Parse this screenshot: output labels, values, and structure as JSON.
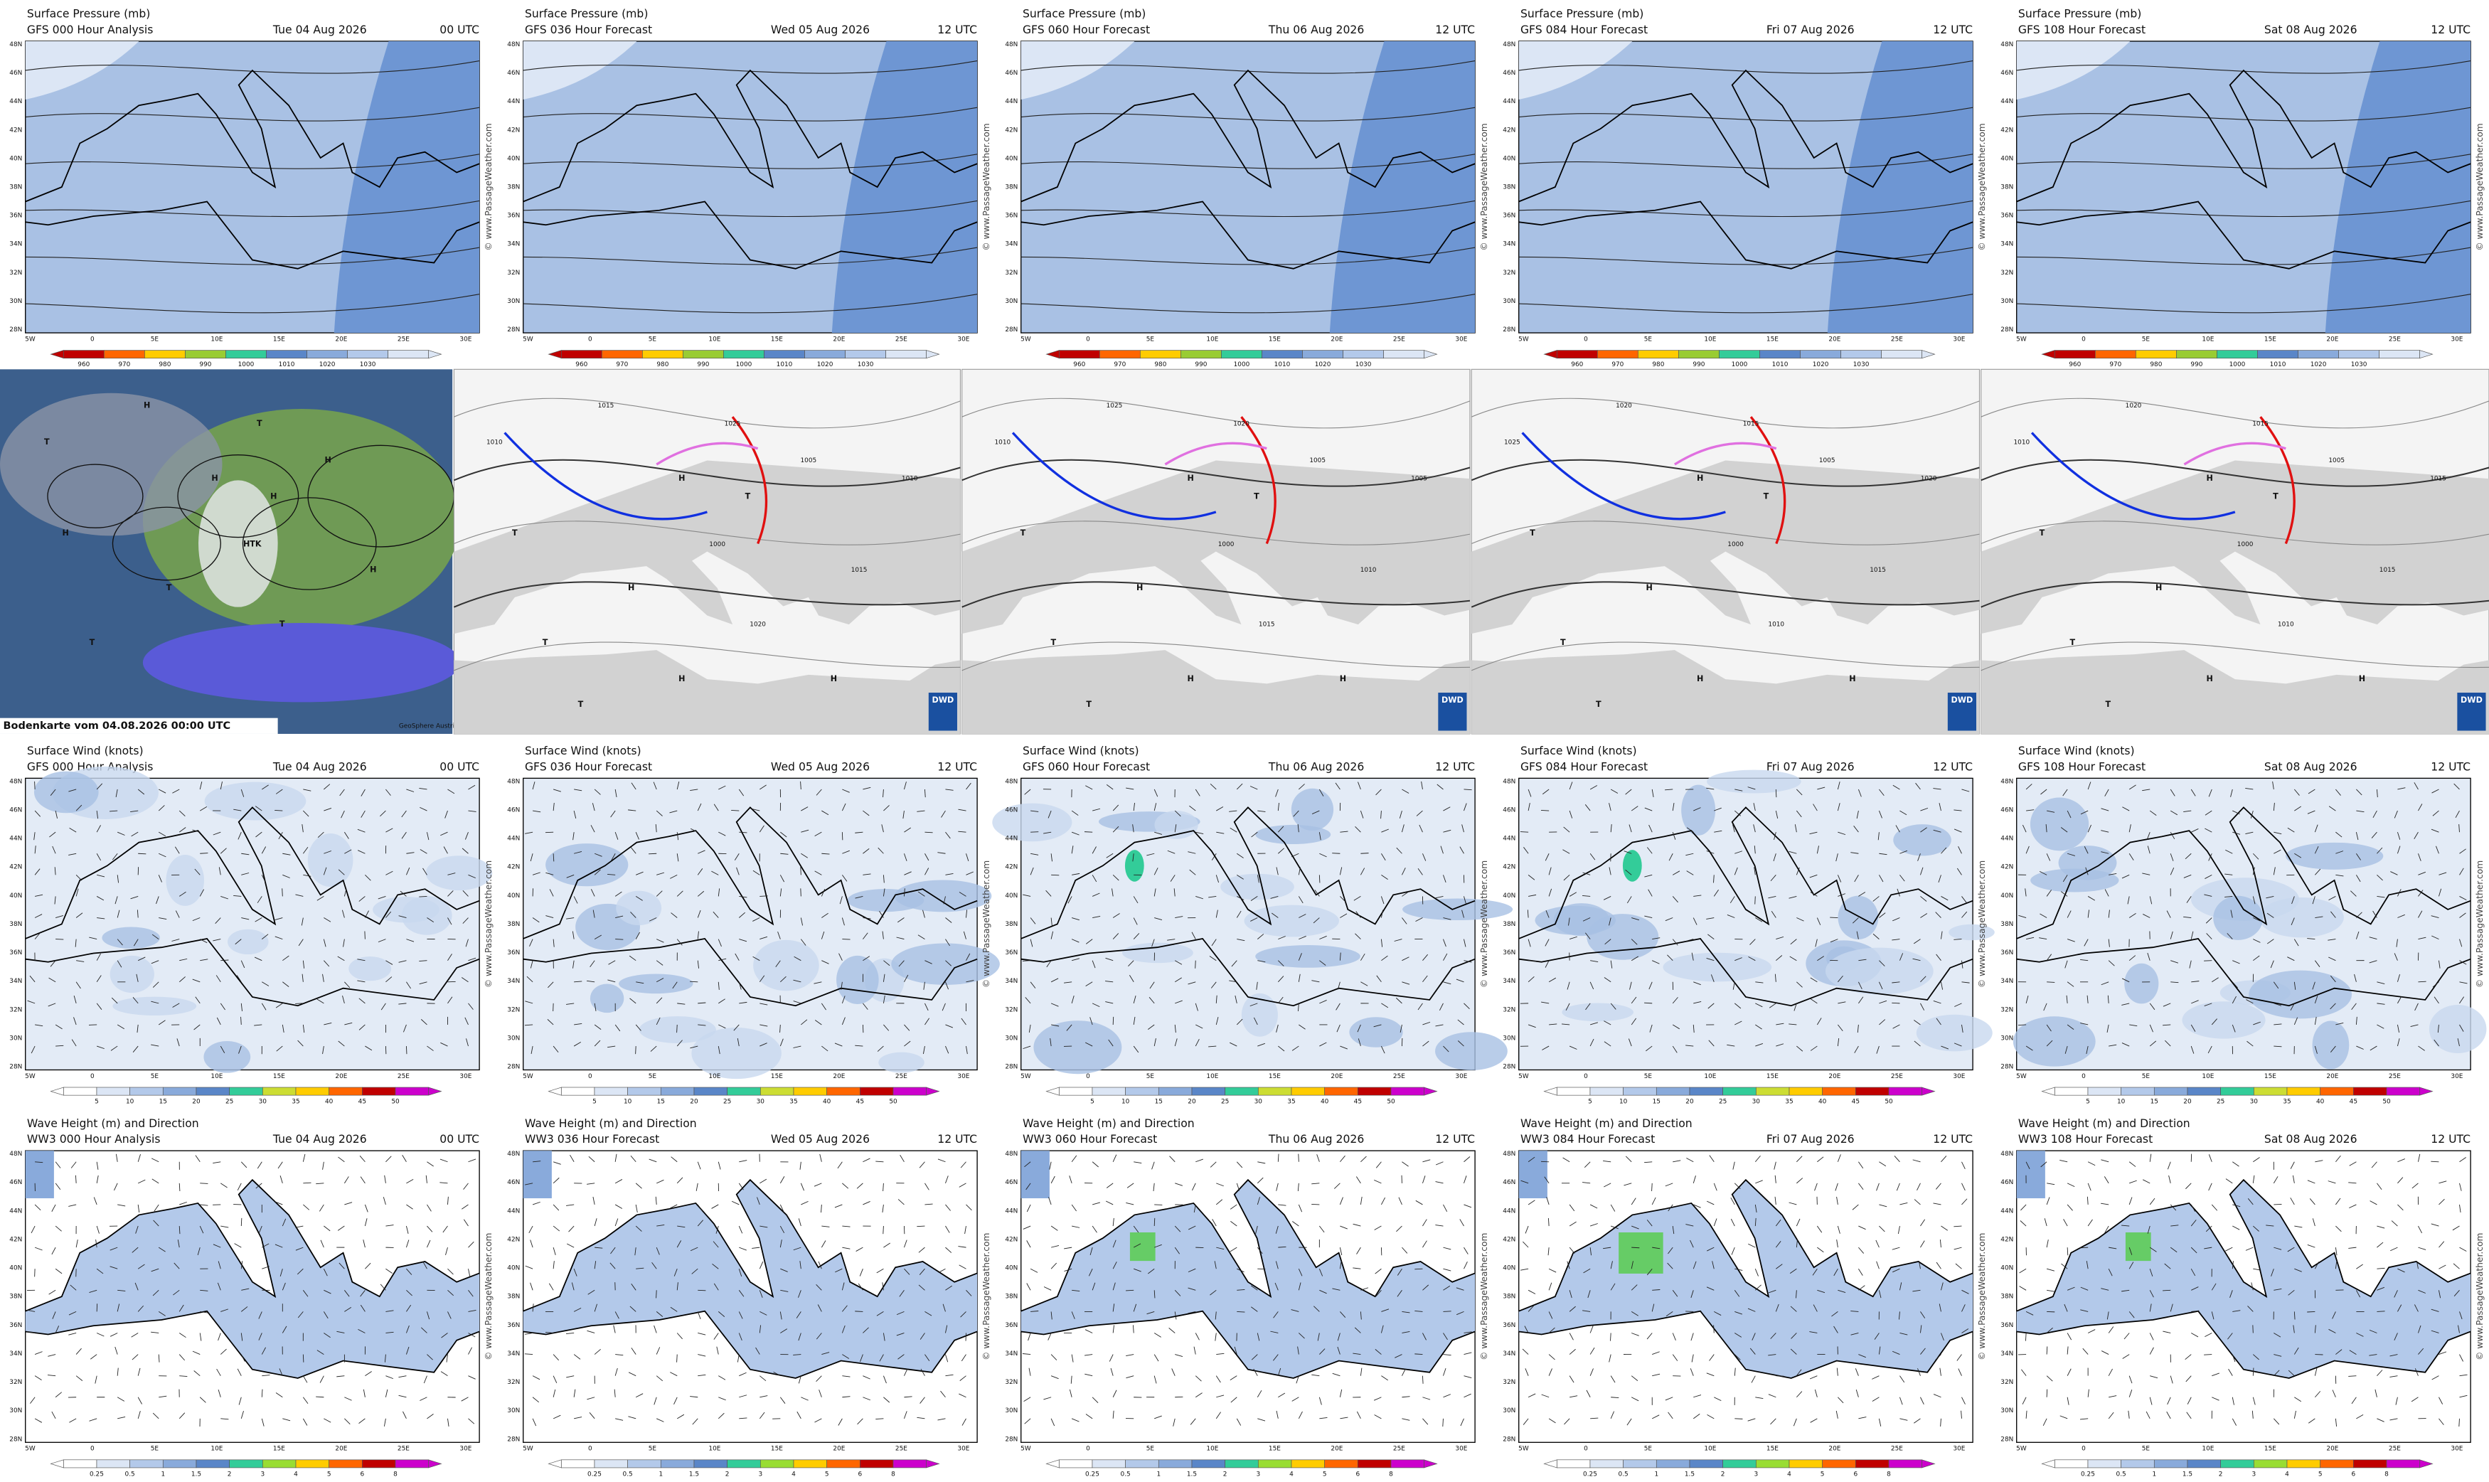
{
  "forecasts": [
    {
      "model_gfs": "GFS 000 Hour Analysis",
      "model_ww3": "WW3 000 Hour Analysis",
      "date": "Tue 04 Aug 2026",
      "time": "00 UTC"
    },
    {
      "model_gfs": "GFS 036 Hour Forecast",
      "model_ww3": "WW3 036 Hour Forecast",
      "date": "Wed 05 Aug 2026",
      "time": "12 UTC"
    },
    {
      "model_gfs": "GFS 060 Hour Forecast",
      "model_ww3": "WW3 060 Hour Forecast",
      "date": "Thu 06 Aug 2026",
      "time": "12 UTC"
    },
    {
      "model_gfs": "GFS 084 Hour Forecast",
      "model_ww3": "WW3 084 Hour Forecast",
      "date": "Fri 07 Aug 2026",
      "time": "12 UTC"
    },
    {
      "model_gfs": "GFS 108 Hour Forecast",
      "model_ww3": "WW3 108 Hour Forecast",
      "date": "Sat 08 Aug 2026",
      "time": "12 UTC"
    }
  ],
  "pressure": {
    "title": "Surface Pressure (mb)",
    "scale": [
      960,
      970,
      980,
      990,
      1000,
      1010,
      1020,
      1030
    ]
  },
  "wind": {
    "title": "Surface Wind (knots)",
    "scale": [
      5,
      10,
      15,
      20,
      25,
      30,
      35,
      40,
      45,
      50
    ]
  },
  "waves": {
    "title": "Wave Height (m) and Direction",
    "scale": [
      0.25,
      0.5,
      1,
      1.5,
      2,
      3,
      4,
      5,
      6,
      8
    ]
  },
  "latitudes": [
    "48N",
    "46N",
    "44N",
    "42N",
    "40N",
    "38N",
    "36N",
    "34N",
    "32N",
    "30N",
    "28N"
  ],
  "longitudes": [
    "5W",
    "0",
    "5E",
    "10E",
    "15E",
    "20E",
    "25E",
    "30E"
  ],
  "watermark": "© www.PassageWeather.com",
  "analysis_maps": {
    "satellite": {
      "caption": "Bodenkarte vom 04.08.2026 00:00 UTC",
      "credit": "GeoSphere Austria",
      "labels": [
        "T",
        "H",
        "H",
        "H",
        "T",
        "H",
        "HTK",
        "H",
        "T",
        "T",
        "T",
        "H"
      ]
    },
    "dwd": [
      {
        "logo": "DWD",
        "labels": [
          "1010",
          "T",
          "1015",
          "H",
          "1025",
          "T",
          "1000",
          "1005",
          "H",
          "T",
          "1020",
          "1015",
          "H",
          "T",
          "1010",
          "H"
        ]
      },
      {
        "logo": "DWD",
        "labels": [
          "1010",
          "T",
          "1025",
          "H",
          "1020",
          "T",
          "1000",
          "1005",
          "H",
          "T",
          "1015",
          "1010",
          "H",
          "T",
          "1005",
          "H"
        ]
      },
      {
        "logo": "DWD",
        "labels": [
          "1025",
          "T",
          "1020",
          "H",
          "1015",
          "T",
          "1000",
          "1005",
          "H",
          "T",
          "1010",
          "1015",
          "H",
          "T",
          "1020",
          "H"
        ]
      },
      {
        "logo": "DWD",
        "labels": [
          "1010",
          "T",
          "1020",
          "H",
          "1015",
          "T",
          "1000",
          "1005",
          "H",
          "T",
          "1010",
          "1015",
          "H",
          "T",
          "1015",
          "H"
        ]
      }
    ]
  }
}
